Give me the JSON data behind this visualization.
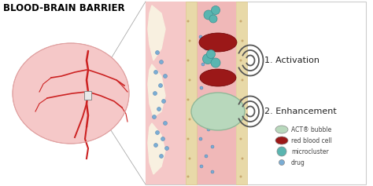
{
  "title": "BLOOD-BRAIN BARRIER",
  "background_color": "#ffffff",
  "label1": "1. Activation",
  "label2": "2. Enhancement",
  "legend_items": [
    {
      "label": "ACT® bubble",
      "color": "#b8d8bc"
    },
    {
      "label": "red blood cell",
      "color": "#8b1a1a"
    },
    {
      "label": "microcluster",
      "color": "#5ab5b0"
    },
    {
      "label": "drug",
      "color": "#7aadd4"
    }
  ],
  "vessel_pink": "#f0b8b8",
  "vessel_wall_tan": "#e8d9a8",
  "vessel_wall_tan2": "#ddc890",
  "outer_tissue_pink": "#f5c8c8",
  "tissue_bg": "#f8f0e0",
  "act_bubble_color": "#b8d8bc",
  "act_bubble_edge": "#90b898",
  "rbc_color": "#9b1818",
  "rbc_edge": "#6b0000",
  "microcluster_color": "#5ab5b0",
  "microcluster_edge": "#3a9090",
  "drug_color": "#7aadd4",
  "drug_edge": "#4477aa",
  "brain_body": "#f5c8c8",
  "brain_vessels": "#cc2222",
  "label_color": "#222222",
  "wave_color": "#555555",
  "zoom_line_color": "#aaaaaa",
  "border_color": "#cccccc"
}
